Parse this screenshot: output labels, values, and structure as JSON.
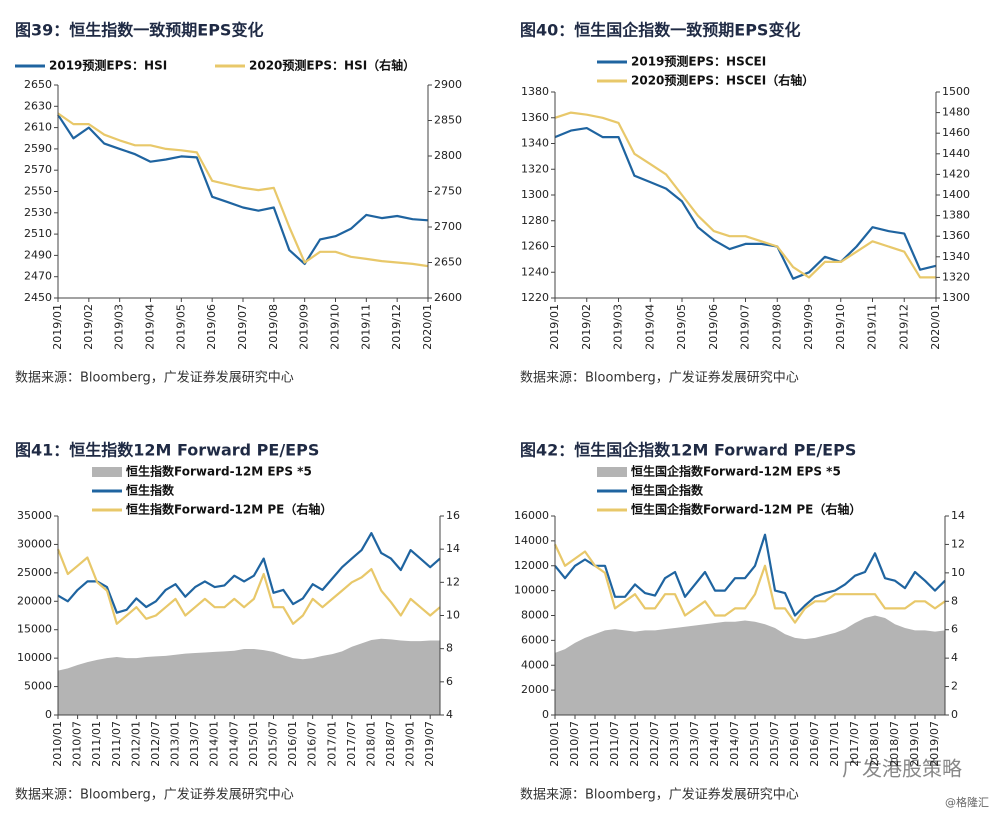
{
  "chart_data": [
    {
      "type": "line",
      "title": "图39：恒生指数一致预期EPS变化",
      "source": "数据来源：Bloomberg，广发证券发展研究中心",
      "categories": [
        "2019/01",
        null,
        "2019/02",
        null,
        "2019/03",
        null,
        "2019/04",
        null,
        "2019/05",
        null,
        "2019/06",
        null,
        "2019/07",
        null,
        "2019/08",
        null,
        "2019/09",
        null,
        "2019/10",
        null,
        "2019/11",
        null,
        "2019/12",
        null,
        "2020/01"
      ],
      "ylim": [
        2450,
        2650
      ],
      "yticks": [
        2450,
        2470,
        2490,
        2510,
        2530,
        2550,
        2570,
        2590,
        2610,
        2630,
        2650
      ],
      "y2lim": [
        2600,
        2900
      ],
      "y2ticks": [
        2600,
        2650,
        2700,
        2750,
        2800,
        2850,
        2900
      ],
      "series": [
        {
          "name": "2019预测EPS：HSI",
          "color": "#1f64a0",
          "values": [
            2622,
            2600,
            2610,
            2595,
            2590,
            2585,
            2578,
            2580,
            2583,
            2582,
            2545,
            2540,
            2535,
            2532,
            2535,
            2495,
            2482,
            2505,
            2508,
            2515,
            2528,
            2525,
            2527,
            2524,
            2523
          ]
        },
        {
          "name": "2020预测EPS：HSI（右轴）",
          "color": "#e8c86a",
          "axis": "y2",
          "values": [
            2860,
            2845,
            2845,
            2830,
            2822,
            2815,
            2815,
            2810,
            2808,
            2805,
            2765,
            2760,
            2755,
            2752,
            2755,
            2700,
            2650,
            2665,
            2665,
            2658,
            2655,
            2652,
            2650,
            2648,
            2645
          ]
        }
      ]
    },
    {
      "type": "line",
      "title": "图40：恒生国企指数一致预期EPS变化",
      "source": "数据来源：Bloomberg，广发证券发展研究中心",
      "categories": [
        "2019/01",
        null,
        "2019/02",
        null,
        "2019/03",
        null,
        "2019/04",
        null,
        "2019/05",
        null,
        "2019/06",
        null,
        "2019/07",
        null,
        "2019/08",
        null,
        "2019/09",
        null,
        "2019/10",
        null,
        "2019/11",
        null,
        "2019/12",
        null,
        "2020/01"
      ],
      "ylim": [
        1220,
        1380
      ],
      "yticks": [
        1220,
        1240,
        1260,
        1280,
        1300,
        1320,
        1340,
        1360,
        1380
      ],
      "y2lim": [
        1300,
        1500
      ],
      "y2ticks": [
        1300,
        1320,
        1340,
        1360,
        1380,
        1400,
        1420,
        1440,
        1460,
        1480,
        1500
      ],
      "series": [
        {
          "name": "2019预测EPS：HSCEI",
          "color": "#1f64a0",
          "values": [
            1345,
            1350,
            1352,
            1345,
            1345,
            1315,
            1310,
            1305,
            1295,
            1275,
            1265,
            1258,
            1262,
            1262,
            1260,
            1235,
            1240,
            1252,
            1248,
            1260,
            1275,
            1272,
            1270,
            1242,
            1245
          ]
        },
        {
          "name": "2020预测EPS：HSCEI（右轴）",
          "color": "#e8c86a",
          "axis": "y2",
          "values": [
            1475,
            1480,
            1478,
            1475,
            1470,
            1440,
            1430,
            1420,
            1400,
            1380,
            1365,
            1360,
            1360,
            1355,
            1350,
            1330,
            1320,
            1335,
            1335,
            1345,
            1355,
            1350,
            1345,
            1320,
            1320
          ]
        }
      ]
    },
    {
      "type": "line",
      "title": "图41：恒生指数12M Forward PE/EPS",
      "source": "数据来源：Bloomberg，广发证券发展研究中心",
      "categories": [
        "2010/01",
        null,
        "2010/07",
        null,
        "2011/01",
        null,
        "2011/07",
        null,
        "2012/01",
        null,
        "2012/07",
        null,
        "2013/01",
        null,
        "2013/07",
        null,
        "2014/01",
        null,
        "2014/07",
        null,
        "2015/01",
        null,
        "2015/07",
        null,
        "2016/01",
        null,
        "2016/07",
        null,
        "2017/01",
        null,
        "2017/07",
        null,
        "2018/01",
        null,
        "2018/07",
        null,
        "2019/01",
        null,
        "2019/07",
        null
      ],
      "ylim": [
        0,
        35000
      ],
      "yticks": [
        0,
        5000,
        10000,
        15000,
        20000,
        25000,
        30000,
        35000
      ],
      "y2lim": [
        4,
        16
      ],
      "y2ticks": [
        4,
        6,
        8,
        10,
        12,
        14,
        16
      ],
      "series": [
        {
          "name": "恒生指数Forward-12M EPS *5",
          "color": "#b4b4b4",
          "kind": "area",
          "values": [
            7800,
            8200,
            8800,
            9300,
            9700,
            10000,
            10200,
            10000,
            10000,
            10200,
            10300,
            10400,
            10600,
            10800,
            10900,
            11000,
            11100,
            11200,
            11300,
            11600,
            11600,
            11400,
            11100,
            10500,
            10000,
            9800,
            10000,
            10400,
            10700,
            11200,
            12000,
            12600,
            13200,
            13400,
            13300,
            13100,
            13000,
            13000,
            13100,
            13100
          ]
        },
        {
          "name": "恒生指数",
          "color": "#1f64a0",
          "values": [
            21000,
            20000,
            22000,
            23500,
            23500,
            22500,
            18000,
            18500,
            20500,
            19000,
            20000,
            22000,
            23000,
            20800,
            22500,
            23500,
            22500,
            22800,
            24500,
            23500,
            24500,
            27500,
            21500,
            22000,
            19500,
            20500,
            23000,
            22000,
            24000,
            26000,
            27500,
            29000,
            32000,
            28500,
            27500,
            25500,
            29000,
            27500,
            26000,
            27500
          ]
        },
        {
          "name": "恒生指数Forward-12M PE（右轴）",
          "color": "#e8c86a",
          "axis": "y2",
          "values": [
            14,
            12.5,
            13,
            13.5,
            12,
            11.5,
            9.5,
            10,
            10.5,
            9.8,
            10,
            10.5,
            11,
            10,
            10.5,
            11,
            10.5,
            10.5,
            11,
            10.5,
            11,
            12.5,
            10.5,
            10.5,
            9.5,
            10,
            11,
            10.5,
            11,
            11.5,
            12,
            12.3,
            12.8,
            11.5,
            10.8,
            10,
            11,
            10.5,
            10,
            10.5
          ]
        }
      ]
    },
    {
      "type": "line",
      "title": "图42：恒生国企指数12M Forward PE/EPS",
      "source": "数据来源：Bloomberg，广发证券发展研究中心",
      "categories": [
        "2010/01",
        null,
        "2010/07",
        null,
        "2011/01",
        null,
        "2011/07",
        null,
        "2012/01",
        null,
        "2012/07",
        null,
        "2013/01",
        null,
        "2013/07",
        null,
        "2014/01",
        null,
        "2014/07",
        null,
        "2015/01",
        null,
        "2015/07",
        null,
        "2016/01",
        null,
        "2016/07",
        null,
        "2017/01",
        null,
        "2017/07",
        null,
        "2018/01",
        null,
        "2018/07",
        null,
        "2019/01",
        null,
        "2019/07",
        null
      ],
      "ylim": [
        0,
        16000
      ],
      "yticks": [
        0,
        2000,
        4000,
        6000,
        8000,
        10000,
        12000,
        14000,
        16000
      ],
      "y2lim": [
        0,
        14
      ],
      "y2ticks": [
        0,
        2,
        4,
        6,
        8,
        10,
        12,
        14
      ],
      "series": [
        {
          "name": "恒生国企指数Forward-12M EPS *5",
          "color": "#b4b4b4",
          "kind": "area",
          "values": [
            5000,
            5300,
            5800,
            6200,
            6500,
            6800,
            6900,
            6800,
            6700,
            6800,
            6800,
            6900,
            7000,
            7100,
            7200,
            7300,
            7400,
            7500,
            7500,
            7600,
            7500,
            7300,
            7000,
            6500,
            6200,
            6100,
            6200,
            6400,
            6600,
            6900,
            7400,
            7800,
            8000,
            7800,
            7300,
            7000,
            6800,
            6800,
            6700,
            6800
          ]
        },
        {
          "name": "恒生国企指数",
          "color": "#1f64a0",
          "values": [
            12000,
            11000,
            12000,
            12500,
            12000,
            12000,
            9500,
            9500,
            10500,
            9800,
            9600,
            11000,
            11500,
            9500,
            10500,
            11500,
            10000,
            10000,
            11000,
            11000,
            12000,
            14500,
            10000,
            9800,
            8000,
            8800,
            9500,
            9800,
            10000,
            10500,
            11200,
            11500,
            13000,
            11000,
            10800,
            10200,
            11500,
            10800,
            10000,
            10800
          ]
        },
        {
          "name": "恒生国企指数Forward-12M PE（右轴）",
          "color": "#e8c86a",
          "axis": "y2",
          "values": [
            12,
            10.5,
            11,
            11.5,
            10.5,
            10,
            7.5,
            8,
            8.5,
            7.5,
            7.5,
            8.5,
            8.5,
            7,
            7.5,
            8,
            7,
            7,
            7.5,
            7.5,
            8.5,
            10.5,
            7.5,
            7.5,
            6.5,
            7.5,
            8,
            8,
            8.5,
            8.5,
            8.5,
            8.5,
            8.5,
            7.5,
            7.5,
            7.5,
            8,
            8,
            7.5,
            8
          ]
        }
      ]
    }
  ],
  "watermark": {
    "brand": "广发港股策略",
    "site": "@格隆汇"
  }
}
